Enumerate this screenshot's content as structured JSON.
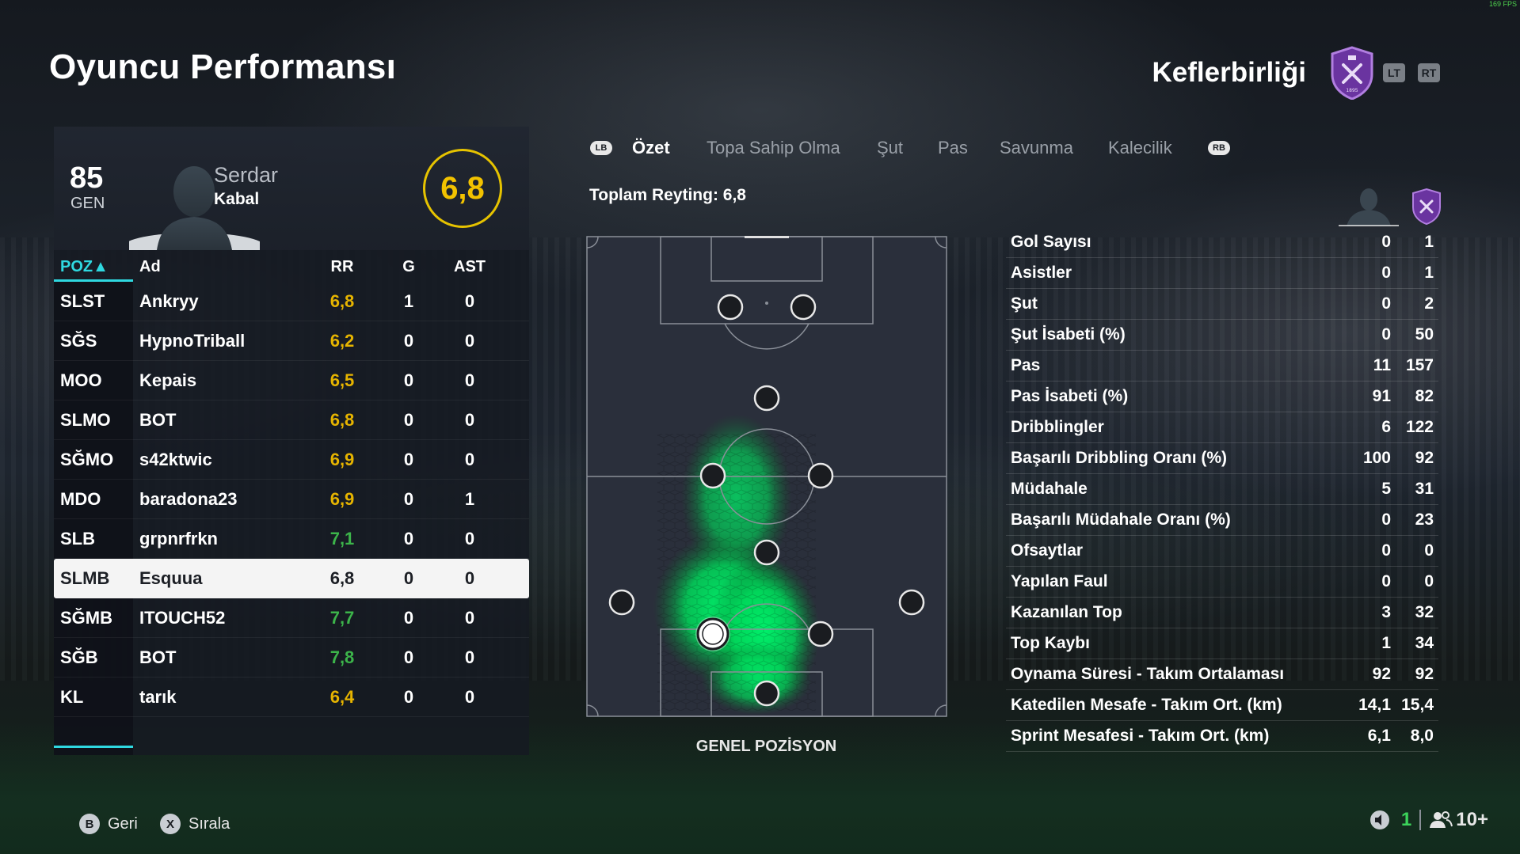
{
  "page_title": "Oyuncu Performansı",
  "team_name": "Keflerbirliği",
  "bumpers": {
    "left": "LT",
    "right": "RT"
  },
  "fps": "169 FPS",
  "player": {
    "overall": "85",
    "overall_label": "GEN",
    "first_name": "Serdar",
    "last_name": "Kabal",
    "rating": "6,8"
  },
  "table": {
    "headers": {
      "pos": "POZ▲",
      "name": "Ad",
      "rr": "RR",
      "g": "G",
      "ast": "AST"
    },
    "rows": [
      {
        "pos": "SLST",
        "name": "Ankryy",
        "rr": "6,8",
        "g": "1",
        "ast": "0",
        "rr_color": "#e6b400"
      },
      {
        "pos": "SĞS",
        "name": "HypnoTriball",
        "rr": "6,2",
        "g": "0",
        "ast": "0",
        "rr_color": "#e6b400"
      },
      {
        "pos": "MOO",
        "name": "Kepais",
        "rr": "6,5",
        "g": "0",
        "ast": "0",
        "rr_color": "#e6b400"
      },
      {
        "pos": "SLMO",
        "name": "BOT",
        "rr": "6,8",
        "g": "0",
        "ast": "0",
        "rr_color": "#e6b400"
      },
      {
        "pos": "SĞMO",
        "name": "s42ktwic",
        "rr": "6,9",
        "g": "0",
        "ast": "0",
        "rr_color": "#e6b400"
      },
      {
        "pos": "MDO",
        "name": "baradona23",
        "rr": "6,9",
        "g": "0",
        "ast": "1",
        "rr_color": "#e6b400"
      },
      {
        "pos": "SLB",
        "name": "grpnrfrkn",
        "rr": "7,1",
        "g": "0",
        "ast": "0",
        "rr_color": "#3cb44a"
      },
      {
        "pos": "SLMB",
        "name": "Esquua",
        "rr": "6,8",
        "g": "0",
        "ast": "0",
        "rr_color": "#1c1f25",
        "selected": true
      },
      {
        "pos": "SĞMB",
        "name": "ITOUCH52",
        "rr": "7,7",
        "g": "0",
        "ast": "0",
        "rr_color": "#3cb44a"
      },
      {
        "pos": "SĞB",
        "name": "BOT",
        "rr": "7,8",
        "g": "0",
        "ast": "0",
        "rr_color": "#3cb44a"
      },
      {
        "pos": "KL",
        "name": "tarık",
        "rr": "6,4",
        "g": "0",
        "ast": "0",
        "rr_color": "#e6b400"
      }
    ]
  },
  "tabs": {
    "lb": "LB",
    "rb": "RB",
    "items": [
      "Özet",
      "Topa Sahip Olma",
      "Şut",
      "Pas",
      "Savunma",
      "Kalecilik"
    ],
    "active": "Özet"
  },
  "total_rating": "Toplam Reyting: 6,8",
  "pitch_label": "GENEL POZİSYON",
  "stats": [
    {
      "label": "Gol Sayısı",
      "player": "0",
      "team": "1"
    },
    {
      "label": "Asistler",
      "player": "0",
      "team": "1"
    },
    {
      "label": "Şut",
      "player": "0",
      "team": "2"
    },
    {
      "label": "Şut İsabeti (%)",
      "player": "0",
      "team": "50"
    },
    {
      "label": "Pas",
      "player": "11",
      "team": "157"
    },
    {
      "label": "Pas İsabeti (%)",
      "player": "91",
      "team": "82"
    },
    {
      "label": "Dribblingler",
      "player": "6",
      "team": "122"
    },
    {
      "label": "Başarılı Dribbling Oranı (%)",
      "player": "100",
      "team": "92"
    },
    {
      "label": "Müdahale",
      "player": "5",
      "team": "31"
    },
    {
      "label": "Başarılı Müdahale Oranı (%)",
      "player": "0",
      "team": "23"
    },
    {
      "label": "Ofsaytlar",
      "player": "0",
      "team": "0"
    },
    {
      "label": "Yapılan Faul",
      "player": "0",
      "team": "0"
    },
    {
      "label": "Kazanılan Top",
      "player": "3",
      "team": "32"
    },
    {
      "label": "Top Kaybı",
      "player": "1",
      "team": "34"
    },
    {
      "label": "Oynama Süresi - Takım Ortalaması",
      "player": "92",
      "team": "92"
    },
    {
      "label": "Katedilen Mesafe - Takım Ort. (km)",
      "player": "14,1",
      "team": "15,4"
    },
    {
      "label": "Sprint Mesafesi - Takım Ort. (km)",
      "player": "6,1",
      "team": "8,0"
    }
  ],
  "footer": {
    "back_key": "B",
    "back_label": "Geri",
    "sort_key": "X",
    "sort_label": "Sırala",
    "count_green": "1",
    "players_count": "10+"
  },
  "colors": {
    "accent_cyan": "#2fd8e0",
    "rating_yellow": "#f2c200",
    "good_green": "#3cb44a",
    "crest_purple": "#7a3fb0"
  }
}
